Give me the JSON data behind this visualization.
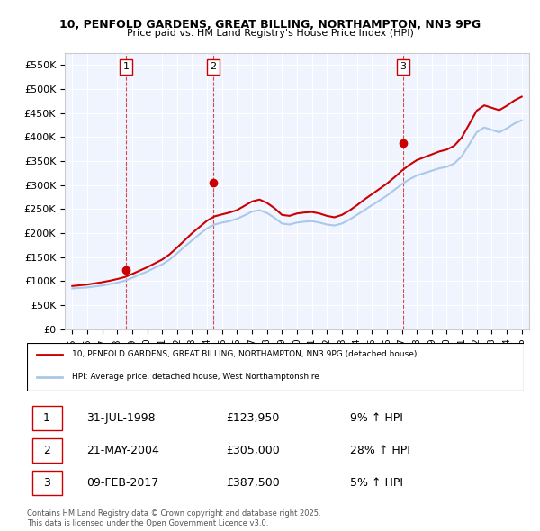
{
  "title_line1": "10, PENFOLD GARDENS, GREAT BILLING, NORTHAMPTON, NN3 9PG",
  "title_line2": "Price paid vs. HM Land Registry's House Price Index (HPI)",
  "ylabel": "",
  "bg_color": "#ffffff",
  "plot_bg_color": "#f0f4ff",
  "grid_color": "#ffffff",
  "red_line_color": "#cc0000",
  "blue_line_color": "#aac8e8",
  "sale_marker_color": "#cc0000",
  "sale_label_border": "#cc0000",
  "transactions": [
    {
      "date": 1998.58,
      "price": 123950,
      "label": "1"
    },
    {
      "date": 2004.39,
      "price": 305000,
      "label": "2"
    },
    {
      "date": 2017.1,
      "price": 387500,
      "label": "3"
    }
  ],
  "legend_line1": "10, PENFOLD GARDENS, GREAT BILLING, NORTHAMPTON, NN3 9PG (detached house)",
  "legend_line2": "HPI: Average price, detached house, West Northamptonshire",
  "table_rows": [
    {
      "num": "1",
      "date": "31-JUL-1998",
      "price": "£123,950",
      "pct": "9% ↑ HPI"
    },
    {
      "num": "2",
      "date": "21-MAY-2004",
      "price": "£305,000",
      "pct": "28% ↑ HPI"
    },
    {
      "num": "3",
      "date": "09-FEB-2017",
      "price": "£387,500",
      "pct": "5% ↑ HPI"
    }
  ],
  "footer": "Contains HM Land Registry data © Crown copyright and database right 2025.\nThis data is licensed under the Open Government Licence v3.0.",
  "ylim": [
    0,
    575000
  ],
  "yticks": [
    0,
    50000,
    100000,
    150000,
    200000,
    250000,
    300000,
    350000,
    400000,
    450000,
    500000,
    550000
  ],
  "xlim_start": 1994.5,
  "xlim_end": 2025.5
}
